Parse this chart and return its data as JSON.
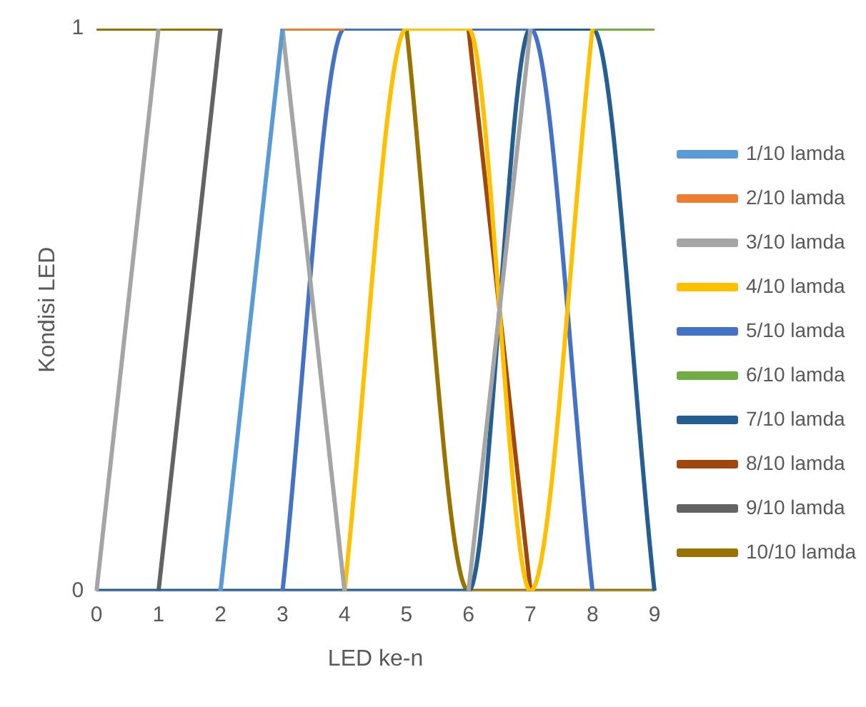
{
  "chart_data": {
    "type": "line",
    "xlabel": "LED ke-n",
    "ylabel": "Kondisi LED",
    "categories": [
      "0",
      "1",
      "2",
      "3",
      "4",
      "5",
      "6",
      "7",
      "8",
      "9"
    ],
    "ylim": [
      0,
      1
    ],
    "yticks": [
      0,
      1
    ],
    "legend": "right",
    "marker": "none",
    "series": [
      {
        "name": "1/10 lamda",
        "color": "#5b9bd5",
        "values": [
          null,
          null,
          0,
          1,
          null,
          null,
          null,
          null,
          null,
          null
        ]
      },
      {
        "name": "2/10 lamda",
        "color": "#ed7d31",
        "values": [
          null,
          null,
          null,
          1,
          1,
          null,
          null,
          null,
          null,
          null
        ]
      },
      {
        "name": "3/10 lamda",
        "color": "#a5a5a5",
        "values": [
          0,
          1,
          null,
          1,
          0,
          null,
          0,
          1,
          null,
          null
        ]
      },
      {
        "name": "4/10 lamda",
        "color": "#ffc000",
        "values": [
          null,
          null,
          null,
          null,
          0,
          1,
          1,
          0,
          1,
          null
        ]
      },
      {
        "name": "5/10 lamda",
        "color": "#4472c4",
        "values": [
          null,
          null,
          null,
          0,
          1,
          1,
          1,
          1,
          0,
          null
        ]
      },
      {
        "name": "6/10 lamda",
        "color": "#70ad47",
        "values": [
          null,
          null,
          null,
          null,
          null,
          null,
          null,
          null,
          1,
          1
        ]
      },
      {
        "name": "7/10 lamda",
        "color": "#255e91",
        "values": [
          0,
          0,
          0,
          0,
          0,
          0,
          0,
          1,
          1,
          0
        ]
      },
      {
        "name": "8/10 lamda",
        "color": "#9e480e",
        "values": [
          null,
          null,
          null,
          null,
          null,
          null,
          1,
          0,
          null,
          null
        ]
      },
      {
        "name": "9/10 lamda",
        "color": "#636363",
        "values": [
          null,
          0,
          1,
          null,
          null,
          null,
          null,
          null,
          null,
          null
        ]
      },
      {
        "name": "10/10 lamda",
        "color": "#997300",
        "values": [
          1,
          1,
          1,
          null,
          null,
          1,
          0,
          0,
          0,
          0
        ]
      }
    ]
  }
}
